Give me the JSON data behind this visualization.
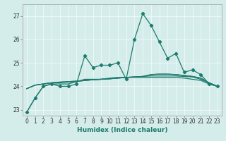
{
  "title": "",
  "xlabel": "Humidex (Indice chaleur)",
  "ylabel": "",
  "xlim": [
    -0.5,
    23.5
  ],
  "ylim": [
    22.75,
    27.5
  ],
  "yticks": [
    23,
    24,
    25,
    26,
    27
  ],
  "xticks": [
    0,
    1,
    2,
    3,
    4,
    5,
    6,
    7,
    8,
    9,
    10,
    11,
    12,
    13,
    14,
    15,
    16,
    17,
    18,
    19,
    20,
    21,
    22,
    23
  ],
  "bg_color": "#d4ecea",
  "grid_color": "#f0fafa",
  "line_color": "#1e7b6e",
  "series": [
    [
      22.9,
      23.5,
      24.0,
      24.1,
      24.0,
      24.0,
      24.1,
      25.3,
      24.8,
      24.9,
      24.9,
      25.0,
      24.3,
      26.0,
      27.1,
      26.6,
      25.9,
      25.2,
      25.4,
      24.6,
      24.7,
      24.5,
      24.1,
      24.0
    ],
    [
      22.9,
      23.5,
      24.0,
      24.1,
      24.1,
      24.1,
      24.2,
      24.3,
      24.3,
      24.3,
      24.35,
      24.38,
      24.38,
      24.38,
      24.38,
      24.38,
      24.38,
      24.38,
      24.38,
      24.35,
      24.3,
      24.25,
      24.1,
      24.0
    ],
    [
      23.9,
      24.05,
      24.1,
      24.15,
      24.15,
      24.18,
      24.2,
      24.25,
      24.28,
      24.3,
      24.32,
      24.35,
      24.38,
      24.4,
      24.42,
      24.44,
      24.44,
      24.44,
      24.44,
      24.42,
      24.4,
      24.3,
      24.15,
      24.0
    ],
    [
      23.9,
      24.05,
      24.1,
      24.15,
      24.18,
      24.2,
      24.22,
      24.25,
      24.28,
      24.3,
      24.32,
      24.35,
      24.38,
      24.4,
      24.42,
      24.5,
      24.52,
      24.52,
      24.5,
      24.46,
      24.42,
      24.35,
      24.15,
      24.0
    ],
    [
      23.9,
      24.05,
      24.1,
      24.15,
      24.18,
      24.2,
      24.22,
      24.25,
      24.28,
      24.3,
      24.32,
      24.35,
      24.38,
      24.4,
      24.42,
      24.5,
      24.52,
      24.52,
      24.5,
      24.46,
      24.42,
      24.35,
      24.15,
      24.0
    ]
  ],
  "has_markers": [
    true,
    false,
    false,
    false,
    false
  ],
  "marker_symbol": "D",
  "marker_size": 2.2,
  "line_width": 0.9,
  "tick_fontsize": 5.5,
  "xlabel_fontsize": 6.5
}
